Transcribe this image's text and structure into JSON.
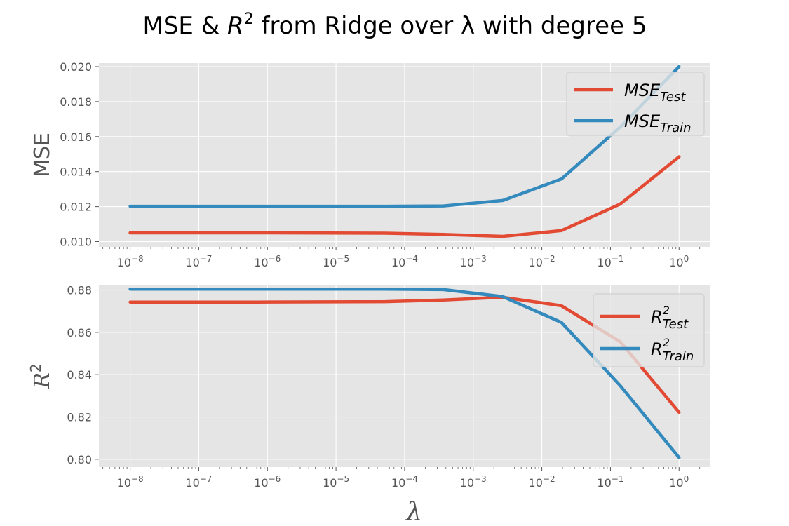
{
  "figure": {
    "title_prefix": "MSE & ",
    "title_r": "R",
    "title_sup": "2",
    "title_suffix": " from Ridge over λ with degree 5"
  },
  "colors": {
    "test": "#E24A33",
    "train": "#348ABD",
    "axes_bg": "#E5E5E5",
    "grid": "#FFFFFF"
  },
  "chart_data": [
    {
      "type": "line",
      "title": "MSE & R^2 from Ridge over λ with degree 5",
      "xlabel": "",
      "ylabel": "MSE",
      "xscale": "log",
      "xlim": [
        3.5e-09,
        2.8
      ],
      "ylim": [
        0.0097,
        0.0202
      ],
      "x": [
        1e-08,
        7.2e-07,
        5.2e-05,
        0.00037,
        0.0027,
        0.0193,
        0.139,
        1.0
      ],
      "x_tick_labels": [
        "10^-8",
        "10^-7",
        "10^-6",
        "10^-5",
        "10^-4",
        "10^-3",
        "10^-2",
        "10^-1",
        "10^0"
      ],
      "y_tick_labels": [
        "0.010",
        "0.012",
        "0.014",
        "0.016",
        "0.018",
        "0.020"
      ],
      "legend_position": "top-right",
      "grid": true,
      "series": [
        {
          "name": "MSE_Test",
          "label_main": "MSE",
          "label_sub": "Test",
          "values": [
            0.0105,
            0.0105,
            0.01048,
            0.01041,
            0.0103,
            0.01063,
            0.01215,
            0.01485
          ]
        },
        {
          "name": "MSE_Train",
          "label_main": "MSE",
          "label_sub": "Train",
          "values": [
            0.01202,
            0.01202,
            0.01202,
            0.01204,
            0.01235,
            0.01358,
            0.01655,
            0.02
          ]
        }
      ]
    },
    {
      "type": "line",
      "xlabel": "λ",
      "ylabel": "R^2",
      "xscale": "log",
      "xlim": [
        3.5e-09,
        2.8
      ],
      "ylim": [
        0.7963,
        0.8825
      ],
      "x": [
        1e-08,
        7.2e-07,
        5.2e-05,
        0.00037,
        0.0027,
        0.0193,
        0.139,
        1.0
      ],
      "x_tick_labels": [
        "10^-8",
        "10^-7",
        "10^-6",
        "10^-5",
        "10^-4",
        "10^-3",
        "10^-2",
        "10^-1",
        "10^0"
      ],
      "y_tick_labels": [
        "0.80",
        "0.82",
        "0.84",
        "0.86",
        "0.88"
      ],
      "legend_position": "top-right",
      "grid": true,
      "series": [
        {
          "name": "R^2_Test",
          "label_main": "R",
          "label_sup": "2",
          "label_sub": "Test",
          "values": [
            0.8743,
            0.8743,
            0.8745,
            0.8753,
            0.8766,
            0.8726,
            0.8555,
            0.8222
          ]
        },
        {
          "name": "R^2_Train",
          "label_main": "R",
          "label_sup": "2",
          "label_sub": "Train",
          "values": [
            0.8804,
            0.8804,
            0.8804,
            0.8802,
            0.8769,
            0.8647,
            0.8348,
            0.8008
          ]
        }
      ]
    }
  ]
}
